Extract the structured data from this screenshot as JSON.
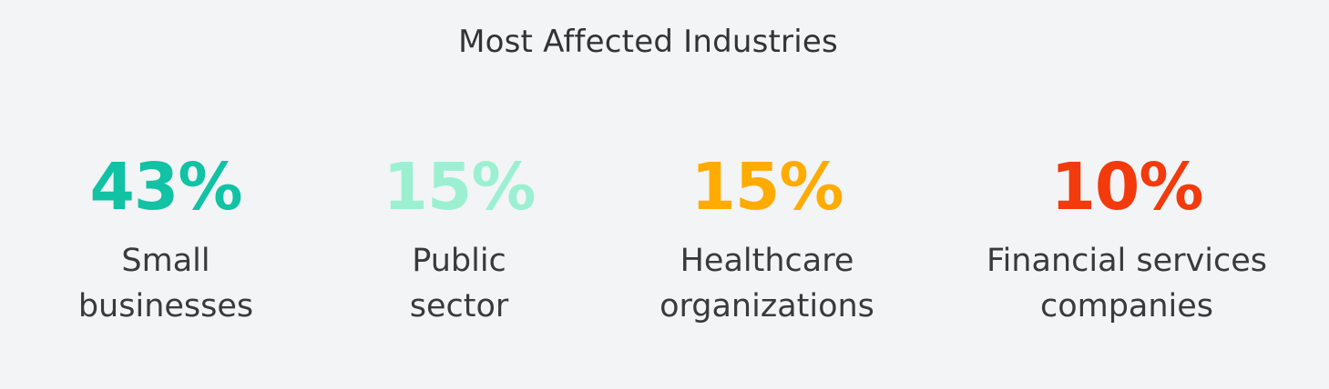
{
  "title": "Most Affected Industries",
  "stats": [
    {
      "value": "43%",
      "label_line1": "Small",
      "label_line2": "businesses",
      "color": "#11c2a4"
    },
    {
      "value": "15%",
      "label_line1": "Public",
      "label_line2": "sector",
      "color": "#9cf0d2"
    },
    {
      "value": "15%",
      "label_line1": "Healthcare",
      "label_line2": "organizations",
      "color": "#ffab00"
    },
    {
      "value": "10%",
      "label_line1": "Financial services",
      "label_line2": "companies",
      "color": "#f23a0c"
    }
  ]
}
